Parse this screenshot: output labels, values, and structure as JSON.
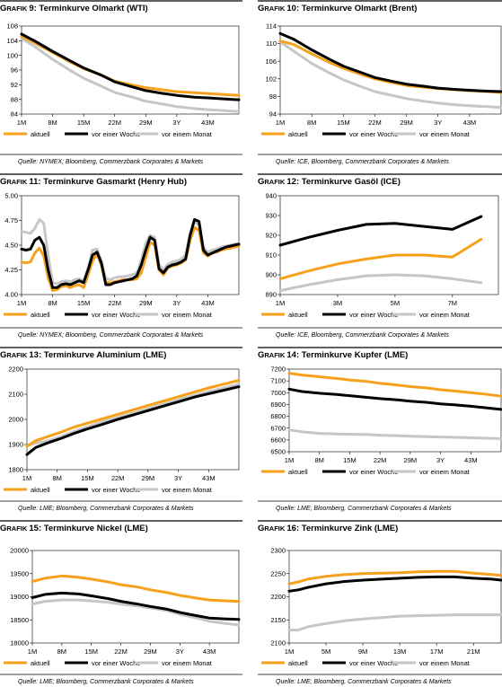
{
  "colors": {
    "aktuell": "#f5a11c",
    "woche": "#000000",
    "monat": "#c6c6c6",
    "rule": "#000000"
  },
  "legend": {
    "aktuell": "aktuell",
    "woche": "vor einer Woche",
    "monat": "vor einem Monat"
  },
  "chart_data": [
    {
      "type": "line",
      "title": "GRAFIK 9: Terminkurve Olmarkt (WTI)",
      "source": "Quelle: NYMEX; Bloomberg, Commerzbank Corporates & Markets",
      "x_labels": [
        "1M",
        "8M",
        "15M",
        "22M",
        "29M",
        "3Y",
        "43M"
      ],
      "y_ticks": [
        "84",
        "88",
        "92",
        "96",
        "100",
        "104",
        "108"
      ],
      "ylim": [
        84,
        108
      ],
      "x": [
        1,
        4,
        8,
        12,
        15,
        19,
        22,
        26,
        29,
        33,
        36,
        40,
        43,
        47,
        50
      ],
      "series": [
        {
          "key": "aktuell",
          "values": [
            105.2,
            103.4,
            100.8,
            98.2,
            96.4,
            94.6,
            93.0,
            91.9,
            91.2,
            90.6,
            90.1,
            89.8,
            89.6,
            89.3,
            89.1
          ]
        },
        {
          "key": "woche",
          "values": [
            105.8,
            103.9,
            101.1,
            98.5,
            96.6,
            94.6,
            92.8,
            91.4,
            90.4,
            89.6,
            89.1,
            88.6,
            88.4,
            88.1,
            87.9
          ]
        },
        {
          "key": "monat",
          "values": [
            104.6,
            102.4,
            98.9,
            95.9,
            93.8,
            91.6,
            89.9,
            88.6,
            87.5,
            86.7,
            86.0,
            85.5,
            85.2,
            84.9,
            84.7
          ]
        }
      ]
    },
    {
      "type": "line",
      "title": "GRAFIK 10: Terminkurve Olmarkt (Brent)",
      "source": "Quelle: ICE, Bloomberg, Commerzbank Corporates & Markets",
      "x_labels": [
        "1M",
        "8M",
        "15M",
        "22M",
        "29M",
        "3Y",
        "43M"
      ],
      "y_ticks": [
        "94",
        "98",
        "102",
        "106",
        "110",
        "114"
      ],
      "ylim": [
        94,
        114
      ],
      "x": [
        1,
        4,
        8,
        12,
        15,
        19,
        22,
        26,
        29,
        33,
        36,
        40,
        43,
        47,
        50
      ],
      "series": [
        {
          "key": "aktuell",
          "values": [
            110.6,
            109.8,
            107.7,
            105.7,
            104.4,
            103.0,
            102.0,
            101.1,
            100.5,
            100.1,
            99.8,
            99.5,
            99.3,
            99.1,
            98.9
          ]
        },
        {
          "key": "woche",
          "values": [
            112.3,
            111.0,
            108.6,
            106.4,
            104.9,
            103.4,
            102.3,
            101.4,
            100.8,
            100.3,
            99.9,
            99.6,
            99.4,
            99.2,
            99.1
          ]
        },
        {
          "key": "monat",
          "values": [
            110.4,
            108.3,
            105.5,
            103.3,
            101.8,
            100.2,
            99.1,
            98.2,
            97.5,
            96.9,
            96.5,
            96.1,
            95.9,
            95.7,
            95.5
          ]
        }
      ]
    },
    {
      "type": "line",
      "title": "GRAFIK 11: Terminkurve Gasmarkt (Henry Hub)",
      "source": "Quelle: NYMEX; Bloomberg, Commerzbank Corporates & Markets",
      "x_labels": [
        "1M",
        "8M",
        "15M",
        "22M",
        "29M",
        "3Y",
        "43M"
      ],
      "y_ticks": [
        "4.00",
        "4.25",
        "4.50",
        "4.75",
        "5.00"
      ],
      "ylim": [
        4.0,
        5.0
      ],
      "x": [
        1,
        2,
        3,
        4,
        5,
        6,
        7,
        8,
        9,
        10,
        11,
        12,
        13,
        14,
        15,
        16,
        17,
        18,
        19,
        20,
        21,
        22,
        23,
        24,
        25,
        26,
        27,
        28,
        29,
        30,
        31,
        32,
        33,
        34,
        35,
        36,
        37,
        38,
        39,
        40,
        41,
        42,
        43,
        44,
        45,
        46,
        47,
        48,
        49,
        50
      ],
      "series": [
        {
          "key": "aktuell",
          "values": [
            4.33,
            4.32,
            4.33,
            4.42,
            4.47,
            4.39,
            4.17,
            4.04,
            4.05,
            4.08,
            4.09,
            4.07,
            4.09,
            4.1,
            4.07,
            4.2,
            4.34,
            4.41,
            4.3,
            4.12,
            4.12,
            4.13,
            4.14,
            4.15,
            4.15,
            4.15,
            4.16,
            4.22,
            4.38,
            4.53,
            4.5,
            4.25,
            4.2,
            4.27,
            4.29,
            4.3,
            4.32,
            4.35,
            4.55,
            4.68,
            4.65,
            4.42,
            4.39,
            4.42,
            4.43,
            4.45,
            4.46,
            4.47,
            4.48,
            4.49
          ]
        },
        {
          "key": "woche",
          "values": [
            4.46,
            4.45,
            4.46,
            4.55,
            4.58,
            4.5,
            4.25,
            4.07,
            4.07,
            4.1,
            4.11,
            4.1,
            4.12,
            4.14,
            4.12,
            4.25,
            4.4,
            4.43,
            4.32,
            4.1,
            4.1,
            4.12,
            4.13,
            4.14,
            4.15,
            4.16,
            4.19,
            4.3,
            4.45,
            4.58,
            4.55,
            4.26,
            4.22,
            4.28,
            4.3,
            4.31,
            4.33,
            4.36,
            4.6,
            4.76,
            4.74,
            4.45,
            4.4,
            4.42,
            4.44,
            4.46,
            4.48,
            4.49,
            4.5,
            4.51
          ]
        },
        {
          "key": "monat",
          "values": [
            4.64,
            4.63,
            4.62,
            4.67,
            4.76,
            4.72,
            4.4,
            4.12,
            4.11,
            4.13,
            4.14,
            4.13,
            4.15,
            4.16,
            4.14,
            4.27,
            4.45,
            4.46,
            4.34,
            4.16,
            4.15,
            4.17,
            4.18,
            4.18,
            4.19,
            4.2,
            4.22,
            4.34,
            4.52,
            4.6,
            4.58,
            4.3,
            4.25,
            4.31,
            4.33,
            4.34,
            4.36,
            4.4,
            4.62,
            4.74,
            4.7,
            4.48,
            4.43,
            4.45,
            4.46,
            4.48,
            4.49,
            4.5,
            4.51,
            4.52
          ]
        }
      ]
    },
    {
      "type": "line",
      "title": "GRAFIK 12: Terminkurve Gasöl (ICE)",
      "source": "Quelle: ICE, Bloomberg, Commerzbank Corporates & Markets",
      "x_labels": [
        "1M",
        "3M",
        "5M",
        "7M"
      ],
      "y_ticks": [
        "890",
        "900",
        "910",
        "920",
        "930",
        "940"
      ],
      "ylim": [
        890,
        940
      ],
      "x": [
        1,
        2,
        3,
        4,
        5,
        6,
        7,
        8
      ],
      "series": [
        {
          "key": "aktuell",
          "values": [
            898,
            902,
            905.5,
            908,
            910,
            910,
            909,
            918
          ]
        },
        {
          "key": "woche",
          "values": [
            915,
            919,
            922.5,
            925.5,
            926,
            924.5,
            923,
            929.5
          ]
        },
        {
          "key": "monat",
          "values": [
            892,
            895,
            897.5,
            899.5,
            900,
            899.5,
            898,
            896
          ]
        }
      ]
    },
    {
      "type": "line",
      "title": "GRAFIK 13: Terminkurve Aluminium (LME)",
      "source": "Quelle: LME; Bloomberg, Commerzbank Corporates & Markets",
      "x_labels": [
        "1M",
        "8M",
        "15M",
        "22M",
        "29M",
        "3Y",
        "43M"
      ],
      "y_ticks": [
        "1800",
        "1900",
        "2000",
        "2100",
        "2200"
      ],
      "ylim": [
        1800,
        2200
      ],
      "x": [
        1,
        3,
        6,
        9,
        12,
        15,
        18,
        22,
        26,
        29,
        33,
        36,
        40,
        43,
        47,
        50
      ],
      "series": [
        {
          "key": "aktuell",
          "values": [
            1893,
            1915,
            1933,
            1950,
            1970,
            1985,
            2000,
            2020,
            2040,
            2055,
            2075,
            2090,
            2110,
            2125,
            2142,
            2155
          ]
        },
        {
          "key": "woche",
          "values": [
            1860,
            1888,
            1908,
            1925,
            1945,
            1962,
            1978,
            2000,
            2020,
            2035,
            2055,
            2070,
            2090,
            2102,
            2118,
            2130
          ]
        },
        {
          "key": "monat",
          "values": [
            1895,
            1905,
            1915,
            1932,
            1953,
            1970,
            1988,
            2008,
            2027,
            2043,
            2063,
            2078,
            2097,
            2110,
            2127,
            2140
          ]
        }
      ]
    },
    {
      "type": "line",
      "title": "GRAFIK 14: Terminkurve Kupfer (LME)",
      "source": "Quelle: LME; Bloomberg, Commerzbank Corporates & Markets",
      "x_labels": [
        "1M",
        "8M",
        "15M",
        "22M",
        "29M",
        "3Y",
        "43M"
      ],
      "y_ticks": [
        "6500",
        "6600",
        "6700",
        "6800",
        "6900",
        "7000",
        "7100",
        "7200"
      ],
      "ylim": [
        6500,
        7200
      ],
      "x": [
        1,
        4,
        8,
        12,
        15,
        19,
        22,
        26,
        29,
        33,
        36,
        40,
        43,
        47,
        50
      ],
      "series": [
        {
          "key": "aktuell",
          "values": [
            7165,
            7150,
            7135,
            7120,
            7108,
            7095,
            7080,
            7065,
            7052,
            7040,
            7025,
            7012,
            7000,
            6985,
            6970
          ]
        },
        {
          "key": "woche",
          "values": [
            7030,
            7010,
            6995,
            6985,
            6975,
            6960,
            6950,
            6940,
            6928,
            6918,
            6905,
            6895,
            6885,
            6870,
            6858
          ]
        },
        {
          "key": "monat",
          "values": [
            6685,
            6668,
            6655,
            6650,
            6648,
            6645,
            6640,
            6636,
            6632,
            6628,
            6625,
            6622,
            6618,
            6614,
            6610
          ]
        }
      ]
    },
    {
      "type": "line",
      "title": "GRAFIK 15: Terminkurve Nickel (LME)",
      "source": "Quelle: LME; Bloomberg, Commerzbank Corporates & Markets",
      "x_labels": [
        "1M",
        "8M",
        "15M",
        "22M",
        "29M",
        "3Y",
        "43M"
      ],
      "y_ticks": [
        "18000",
        "18500",
        "19000",
        "19500",
        "20000"
      ],
      "ylim": [
        18000,
        20000
      ],
      "x": [
        1,
        4,
        8,
        12,
        15,
        19,
        22,
        26,
        29,
        33,
        36,
        40,
        43,
        47,
        50
      ],
      "series": [
        {
          "key": "aktuell",
          "values": [
            19330,
            19400,
            19450,
            19420,
            19380,
            19320,
            19260,
            19210,
            19150,
            19090,
            19030,
            18970,
            18930,
            18910,
            18900
          ]
        },
        {
          "key": "woche",
          "values": [
            18980,
            19050,
            19080,
            19060,
            19020,
            18960,
            18900,
            18840,
            18790,
            18730,
            18660,
            18590,
            18540,
            18520,
            18510
          ]
        },
        {
          "key": "monat",
          "values": [
            18840,
            18900,
            18930,
            18930,
            18910,
            18880,
            18840,
            18800,
            18760,
            18700,
            18620,
            18540,
            18470,
            18420,
            18390
          ]
        }
      ]
    },
    {
      "type": "line",
      "title": "GRAFIK 16: Terminkurve Zink (LME)",
      "source": "Quelle: LME; Bloomberg, Commerzbank Corporates & Markets",
      "x_labels": [
        "1M",
        "5M",
        "9M",
        "13M",
        "17M",
        "21M"
      ],
      "y_ticks": [
        "2100",
        "2150",
        "2200",
        "2250",
        "2300"
      ],
      "ylim": [
        2100,
        2300
      ],
      "x": [
        1,
        2,
        3,
        5,
        7,
        9,
        11,
        13,
        15,
        17,
        19,
        21,
        23,
        24
      ],
      "series": [
        {
          "key": "aktuell",
          "values": [
            2228,
            2232,
            2238,
            2244,
            2248,
            2250,
            2251,
            2252,
            2254,
            2255,
            2255,
            2251,
            2248,
            2246
          ]
        },
        {
          "key": "woche",
          "values": [
            2212,
            2215,
            2220,
            2228,
            2233,
            2236,
            2238,
            2240,
            2242,
            2243,
            2243,
            2240,
            2238,
            2236
          ]
        },
        {
          "key": "monat",
          "values": [
            2128,
            2128,
            2135,
            2142,
            2148,
            2152,
            2155,
            2158,
            2159,
            2160,
            2161,
            2161,
            2161,
            2161
          ]
        }
      ]
    }
  ]
}
